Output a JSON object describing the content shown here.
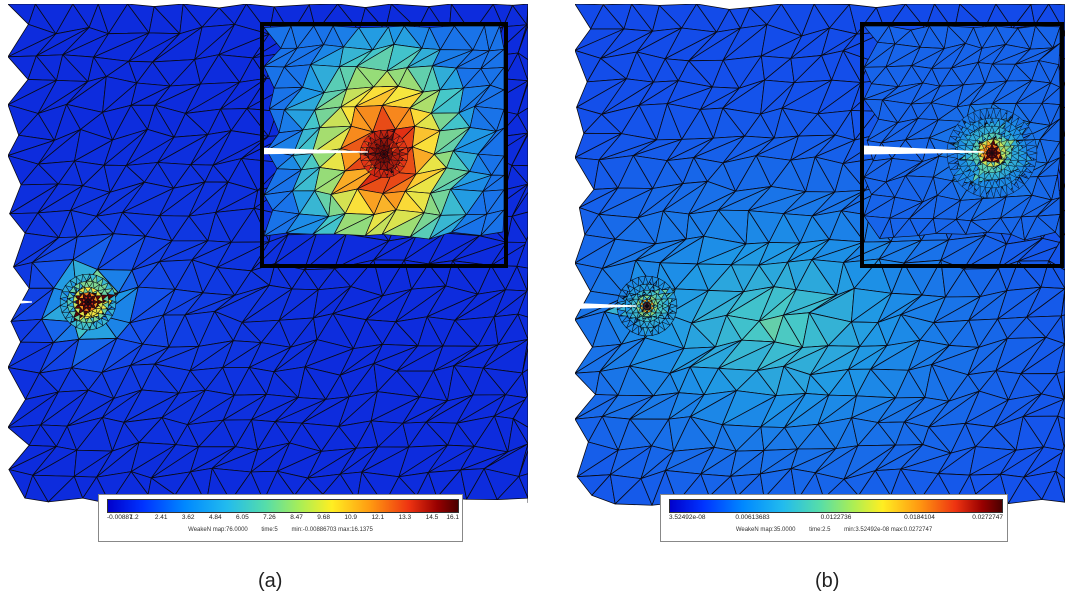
{
  "panels": [
    {
      "label": "(a)",
      "legend": {
        "ticks": [
          "-0.00887",
          "1.2",
          "2.41",
          "3.62",
          "4.84",
          "6.05",
          "7.26",
          "8.47",
          "9.68",
          "10.9",
          "12.1",
          "13.3",
          "14.5",
          "16.1"
        ],
        "info": [
          "WeakeN map:76.0000",
          "time:5",
          "min:-0.00886703 max:16.1375"
        ],
        "min": -0.00886703,
        "max": 16.1375
      }
    },
    {
      "label": "(b)",
      "legend": {
        "ticks": [
          "3.52492e-08",
          "0.00613683",
          "0.0122736",
          "0.0184104",
          "0.0272747"
        ],
        "info": [
          "WeakeN map:35.0000",
          "time:2.5",
          "min:3.52492e-08 max:0.0272747"
        ],
        "min": 3.52492e-08,
        "max": 0.0272747
      }
    }
  ],
  "colors": {
    "field_low": "#1030e0",
    "field_mid": "#35b8d8",
    "field_high": "#e02a10",
    "mesh_edges": "#0a0a14",
    "notch": "#ffffff"
  }
}
